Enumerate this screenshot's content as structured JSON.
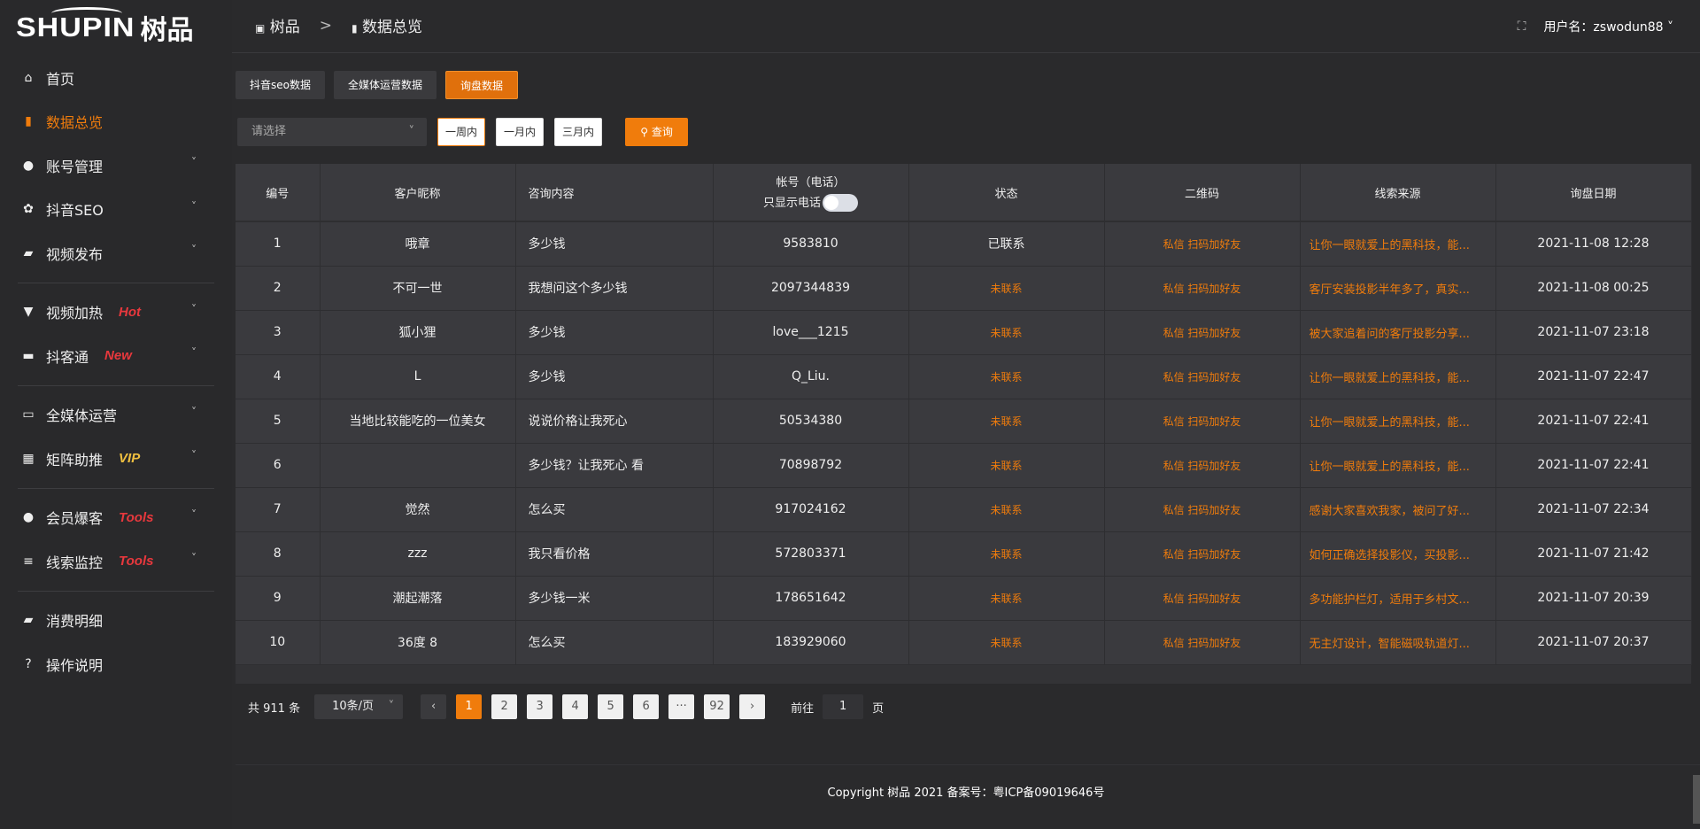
{
  "brand": {
    "logo_en": "SHUPIN",
    "logo_cn": "树品"
  },
  "sidebar": {
    "items": [
      {
        "label": "首页",
        "icon": "home-icon",
        "glyph": "⌂"
      },
      {
        "label": "数据总览",
        "icon": "bar-chart-icon",
        "glyph": "▮",
        "active": true
      },
      {
        "label": "账号管理",
        "icon": "user-icon",
        "glyph": "●",
        "chevron": true
      },
      {
        "label": "抖音SEO",
        "icon": "gear-icon",
        "glyph": "✿",
        "chevron": true
      },
      {
        "label": "视频发布",
        "icon": "video-icon",
        "glyph": "▰",
        "chevron": true
      },
      {
        "divider": true
      },
      {
        "label": "视频加热",
        "icon": "brush-icon",
        "glyph": "▼",
        "tag": "Hot",
        "chevron": true
      },
      {
        "label": "抖客通",
        "icon": "chat-icon",
        "glyph": "▬",
        "tag": "New",
        "chevron": true
      },
      {
        "divider": true
      },
      {
        "label": "全媒体运营",
        "icon": "monitor-icon",
        "glyph": "▭",
        "chevron": true
      },
      {
        "label": "矩阵助推",
        "icon": "grid-icon",
        "glyph": "▦",
        "tag": "VIP",
        "tagType": "vip",
        "chevron": true
      },
      {
        "divider": true
      },
      {
        "label": "会员爆客",
        "icon": "user-icon",
        "glyph": "●",
        "tag": "Tools",
        "chevron": true
      },
      {
        "label": "线索监控",
        "icon": "sliders-icon",
        "glyph": "≡",
        "tag": "Tools",
        "chevron": true
      },
      {
        "divider": true
      },
      {
        "label": "消费明细",
        "icon": "wallet-icon",
        "glyph": "▰"
      },
      {
        "label": "操作说明",
        "icon": "help-icon",
        "glyph": "?"
      }
    ]
  },
  "header": {
    "breadcrumb": [
      "树品",
      "数据总览"
    ],
    "separator": ">",
    "username": "用户名：zswodun88"
  },
  "tabs": [
    {
      "label": "抖音seo数据"
    },
    {
      "label": "全媒体运营数据"
    },
    {
      "label": "询盘数据",
      "active": true
    }
  ],
  "filters": {
    "select_placeholder": "请选择",
    "ranges": [
      "一周内",
      "一月内",
      "三月内"
    ],
    "active_range": 0,
    "query": "查询"
  },
  "table": {
    "columns": [
      "编号",
      "客户昵称",
      "咨询内容",
      "帐号（电话）",
      "状态",
      "二维码",
      "线索来源",
      "询盘日期"
    ],
    "phone_toggle_label": "只显示电话",
    "rows": [
      [
        "1",
        "哦章",
        "多少钱",
        "9583810",
        "已联系",
        "私信 扫码加好友",
        "让你一眼就爱上的黑科技，能...",
        "2021-11-08 12:28"
      ],
      [
        "2",
        "不可一世",
        "我想问这个多少钱",
        "2097344839",
        "未联系",
        "私信 扫码加好友",
        "客厅安装投影半年多了，真实...",
        "2021-11-08 00:25"
      ],
      [
        "3",
        "狐小狸",
        "多少钱",
        "love___1215",
        "未联系",
        "私信 扫码加好友",
        "被大家追着问的客厅投影分享...",
        "2021-11-07 23:18"
      ],
      [
        "4",
        "L",
        "多少钱",
        "Q_Liu.",
        "未联系",
        "私信 扫码加好友",
        "让你一眼就爱上的黑科技，能...",
        "2021-11-07 22:47"
      ],
      [
        "5",
        "当地比较能吃的一位美女",
        "说说价格让我死心",
        "50534380",
        "未联系",
        "私信 扫码加好友",
        "让你一眼就爱上的黑科技，能...",
        "2021-11-07 22:41"
      ],
      [
        "6",
        "",
        "多少钱？让我死心 看",
        "70898792",
        "未联系",
        "私信 扫码加好友",
        "让你一眼就爱上的黑科技，能...",
        "2021-11-07 22:41"
      ],
      [
        "7",
        "觉然",
        "怎么买",
        "917024162",
        "未联系",
        "私信 扫码加好友",
        "感谢大家喜欢我家，被问了好...",
        "2021-11-07 22:34"
      ],
      [
        "8",
        "zzz",
        "我只看价格",
        "572803371",
        "未联系",
        "私信 扫码加好友",
        "如何正确选择投影仪，买投影...",
        "2021-11-07 21:42"
      ],
      [
        "9",
        "潮起潮落",
        "多少钱一米",
        "178651642",
        "未联系",
        "私信 扫码加好友",
        "多功能护栏灯，适用于乡村文...",
        "2021-11-07 20:39"
      ],
      [
        "10",
        "36度 8",
        "怎么买",
        "183929060",
        "未联系",
        "私信 扫码加好友",
        "无主灯设计，智能磁吸轨道灯...",
        "2021-11-07 20:37"
      ]
    ]
  },
  "pagination": {
    "total": "共 911 条",
    "page_size": "10条/页",
    "pages": [
      "1",
      "2",
      "3",
      "4",
      "5",
      "6",
      "···",
      "92"
    ],
    "current": "1",
    "goto_label": "前往",
    "goto_value": "1",
    "page_unit": "页"
  },
  "footer": {
    "copyright": "Copyright 树品 2021 备案号：粤ICP备09019646号"
  },
  "colors": {
    "accent": "#f07c0c",
    "hot": "#e8383d",
    "vip": "#f0c040"
  }
}
